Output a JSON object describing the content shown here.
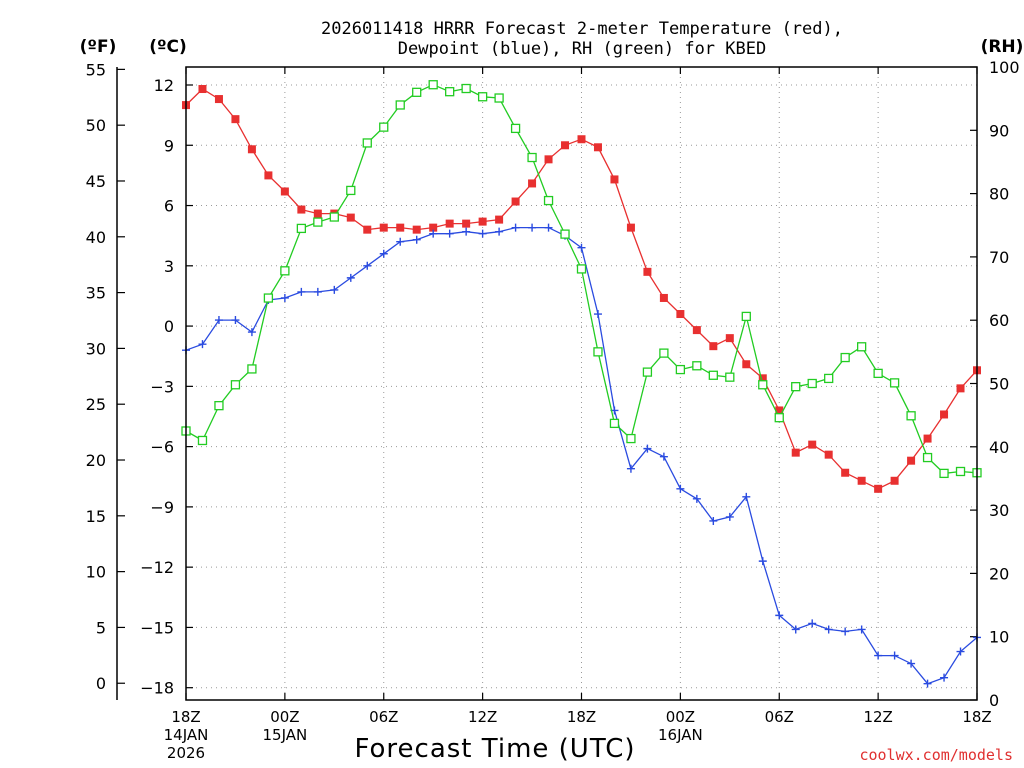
{
  "chart_data": {
    "type": "line",
    "title_line1": "2026011418 HRRR Forecast 2-meter Temperature (red),",
    "title_line2": "Dewpoint (blue), RH (green) for KBED",
    "xlabel": "Forecast Time (UTC)",
    "credit": "coolwx.com/models",
    "left_unit_f": "(ºF)",
    "left_unit_c": "(ºC)",
    "right_unit": "(RH)",
    "x_range": [
      0,
      48
    ],
    "y_celsius_range": [
      -18.5,
      12.7
    ],
    "rh_range": [
      0,
      100
    ],
    "fahrenheit_ticks": [
      0,
      5,
      10,
      15,
      20,
      25,
      30,
      35,
      40,
      45,
      50,
      55
    ],
    "celsius_ticks": [
      -18,
      -15,
      -12,
      -9,
      -6,
      -3,
      0,
      3,
      6,
      9,
      12
    ],
    "rh_ticks": [
      0,
      10,
      20,
      30,
      40,
      50,
      60,
      70,
      80,
      90,
      100
    ],
    "x_ticks": [
      {
        "hour": 0,
        "lines": [
          "18Z",
          "14JAN",
          "2026"
        ]
      },
      {
        "hour": 6,
        "lines": [
          "00Z",
          "15JAN"
        ]
      },
      {
        "hour": 12,
        "lines": [
          "06Z"
        ]
      },
      {
        "hour": 18,
        "lines": [
          "12Z"
        ]
      },
      {
        "hour": 24,
        "lines": [
          "18Z"
        ]
      },
      {
        "hour": 30,
        "lines": [
          "00Z",
          "16JAN"
        ]
      },
      {
        "hour": 36,
        "lines": [
          "06Z"
        ]
      },
      {
        "hour": 42,
        "lines": [
          "12Z"
        ]
      },
      {
        "hour": 48,
        "lines": [
          "18Z"
        ]
      }
    ],
    "series": [
      {
        "name": "2-meter Temperature",
        "units": "C",
        "color": "#e83030",
        "marker": "filled-square",
        "values": [
          11.0,
          11.8,
          11.3,
          10.3,
          8.8,
          7.5,
          6.7,
          5.8,
          5.6,
          5.6,
          5.4,
          4.8,
          4.9,
          4.9,
          4.8,
          4.9,
          5.1,
          5.1,
          5.2,
          5.3,
          6.2,
          7.1,
          8.3,
          9.0,
          9.3,
          8.9,
          7.3,
          4.9,
          2.7,
          1.4,
          0.6,
          -0.2,
          -1.0,
          -0.6,
          -1.9,
          -2.6,
          -4.2,
          -6.3,
          -5.9,
          -6.4,
          -7.3,
          -7.7,
          -8.1,
          -7.7,
          -6.7,
          -5.6,
          -4.4,
          -3.1,
          -2.2
        ]
      },
      {
        "name": "Dewpoint",
        "units": "C",
        "color": "#2a4be0",
        "marker": "plus",
        "values": [
          -1.2,
          -0.9,
          0.3,
          0.3,
          -0.3,
          1.3,
          1.4,
          1.7,
          1.7,
          1.8,
          2.4,
          3.0,
          3.6,
          4.2,
          4.3,
          4.6,
          4.6,
          4.7,
          4.6,
          4.7,
          4.9,
          4.9,
          4.9,
          4.5,
          3.9,
          0.6,
          -4.2,
          -7.1,
          -6.1,
          -6.5,
          -8.1,
          -8.6,
          -9.7,
          -9.5,
          -8.5,
          -11.7,
          -14.4,
          -15.1,
          -14.8,
          -15.1,
          -15.2,
          -15.1,
          -16.4,
          -16.4,
          -16.8,
          -17.8,
          -17.5,
          -16.2,
          -15.5
        ]
      },
      {
        "name": "RH",
        "units": "%",
        "color": "#22cc22",
        "marker": "open-square",
        "values": [
          42.5,
          41.0,
          46.5,
          49.8,
          52.3,
          63.5,
          67.8,
          74.5,
          75.5,
          76.3,
          80.5,
          88.0,
          90.5,
          94.0,
          96.0,
          97.2,
          96.1,
          96.6,
          95.3,
          95.1,
          90.3,
          85.7,
          78.9,
          73.6,
          68.1,
          55.0,
          43.7,
          41.3,
          51.8,
          54.8,
          52.2,
          52.8,
          51.3,
          51.0,
          60.6,
          49.8,
          44.6,
          49.5,
          50.0,
          50.8,
          54.1,
          55.8,
          51.6,
          50.1,
          44.9,
          38.3,
          35.8,
          36.1,
          35.9
        ]
      }
    ]
  }
}
